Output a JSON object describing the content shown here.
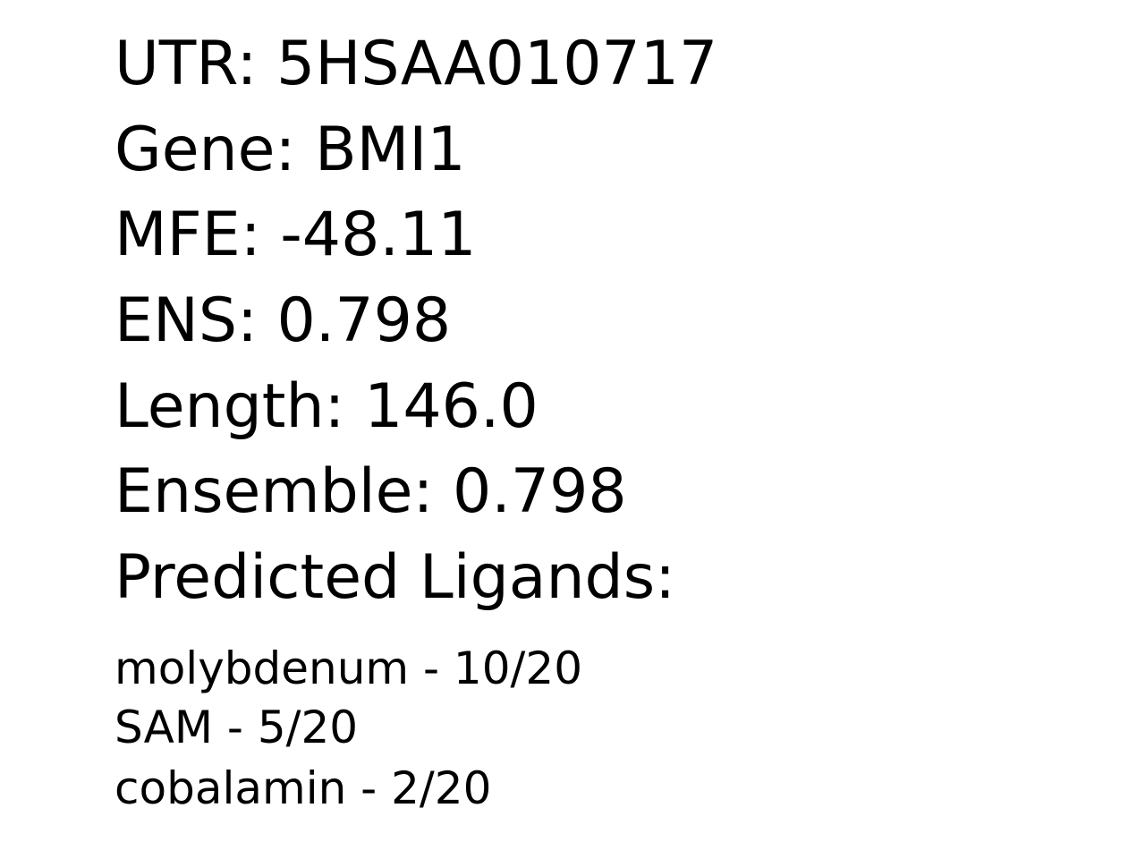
{
  "fields": [
    {
      "label": "UTR",
      "value": "5HSAA010717"
    },
    {
      "label": "Gene",
      "value": "BMI1"
    },
    {
      "label": "MFE",
      "value": "-48.11"
    },
    {
      "label": "ENS",
      "value": "0.798"
    },
    {
      "label": "Length",
      "value": "146.0"
    },
    {
      "label": "Ensemble",
      "value": "0.798"
    }
  ],
  "ligands_heading": "Predicted Ligands:",
  "ligands": [
    {
      "text": "molybdenum - 10/20"
    },
    {
      "text": "SAM - 5/20"
    },
    {
      "text": "cobalamin - 2/20"
    }
  ],
  "lines": {
    "utr": "UTR: 5HSAA010717",
    "gene": "Gene: BMI1",
    "mfe": "MFE: -48.11",
    "ens": "ENS: 0.798",
    "length": "Length: 146.0",
    "ensemble": "Ensemble: 0.798"
  }
}
